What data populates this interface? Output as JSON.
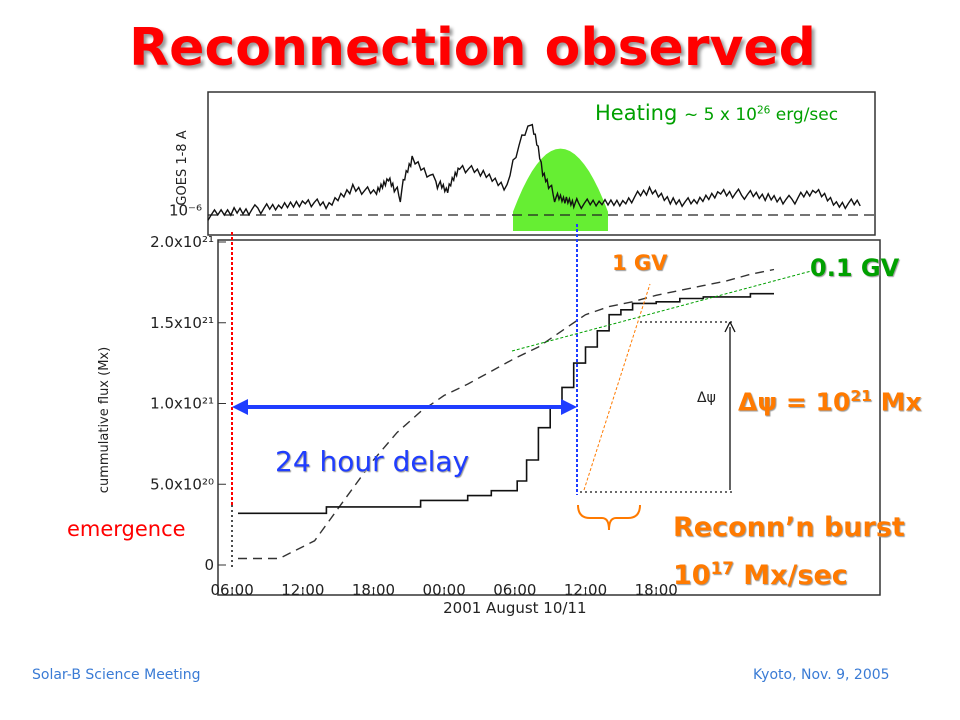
{
  "title": "Reconnection observed",
  "footer": {
    "left": "Solar-B Science Meeting",
    "right": "Kyoto, Nov. 9, 2005"
  },
  "annotations": {
    "heating_word": "Heating",
    "heating_tilde": "~ 5 x 10",
    "heating_exp": "26",
    "heating_unit": "erg/sec",
    "gv1": "1 GV",
    "gv01": "0.1 GV",
    "dpsi_sym": "Δψ",
    "dpsi_eq": " = 10",
    "dpsi_exp": "21",
    "dpsi_unit": " Mx",
    "delay": "24 hour delay",
    "emergence": "emergence",
    "burst_line1": "Reconn’n burst",
    "burst_base": "10",
    "burst_exp": "17",
    "burst_unit": " Mx/sec",
    "inner_dpsi": "Δψ"
  },
  "colors": {
    "title": "#ff0000",
    "heating": "#00a000",
    "heating_fill": "#66ee33",
    "orange": "#ff7a00",
    "blue": "#1f3dff",
    "footer": "#3a7bd5"
  },
  "chart_data": [
    {
      "panel": "GOES X-ray",
      "type": "line",
      "ylabel": "GOES 1-8 A",
      "y_tick_labels": [
        "10⁻⁶"
      ],
      "y_scale": "log",
      "x_range_hours": [
        4.8,
        61
      ],
      "background_level": 0.9,
      "series": [
        {
          "x": [
            4.8,
            7,
            9,
            11,
            13,
            15,
            17,
            19,
            20,
            21,
            22,
            24,
            25,
            26,
            28,
            30,
            32,
            33,
            34,
            35,
            36,
            38,
            40,
            42,
            44,
            46,
            48,
            50,
            52,
            54,
            56,
            58,
            60
          ],
          "values": [
            0.9,
            1.0,
            1.05,
            1.1,
            1.3,
            1.1,
            1.8,
            1.5,
            2.2,
            1.4,
            3.5,
            2.0,
            1.6,
            3.0,
            2.4,
            1.8,
            8.0,
            2.5,
            1.4,
            1.3,
            1.2,
            1.2,
            1.3,
            1.6,
            1.3,
            1.2,
            1.6,
            1.5,
            1.4,
            1.3,
            1.6,
            1.2,
            1.2
          ]
        }
      ],
      "heating_interval_hours": [
        30.5,
        38.5
      ],
      "heating_peak": 4.5
    },
    {
      "panel": "cumulative flux",
      "type": "line",
      "ylabel": "cummulative flux (Mx)",
      "xlabel": "2001 August 10/11",
      "x_tick_labels": [
        "06:00",
        "12:00",
        "18:00",
        "00:00",
        "06:00",
        "12:00",
        "18:00"
      ],
      "y_tick_labels": [
        "0",
        "5.0x10²⁰",
        "1.0x10²¹",
        "1.5x10²¹",
        "2.0x10²¹"
      ],
      "ylim": [
        0,
        2e+21
      ],
      "series": [
        {
          "style": "dashed",
          "x": [
            6.5,
            10,
            13,
            16,
            18,
            20,
            22,
            24,
            26,
            28,
            30,
            32,
            34,
            36,
            38,
            40,
            42,
            44,
            46,
            48,
            50,
            52
          ],
          "values": [
            4e+19,
            4e+19,
            1.5e+20,
            4.5e+20,
            6.5e+20,
            8.2e+20,
            9.5e+20,
            1.05e+21,
            1.12e+21,
            1.2e+21,
            1.28e+21,
            1.35e+21,
            1.45e+21,
            1.55e+21,
            1.6e+21,
            1.63e+21,
            1.67e+21,
            1.7e+21,
            1.73e+21,
            1.76e+21,
            1.8e+21,
            1.83e+21
          ]
        },
        {
          "style": "solid",
          "x": [
            6.5,
            12,
            14,
            18,
            22,
            26,
            28,
            30,
            30.2,
            31,
            32,
            33,
            34,
            35,
            36,
            37,
            38,
            39,
            40,
            42,
            44,
            46,
            48,
            50,
            52
          ],
          "values": [
            3.2e+20,
            3.2e+20,
            3.6e+20,
            3.6e+20,
            4e+20,
            4.3e+20,
            4.6e+20,
            4.6e+20,
            5.2e+20,
            6.5e+20,
            8.5e+20,
            9.8e+20,
            1.1e+21,
            1.25e+21,
            1.35e+21,
            1.45e+21,
            1.55e+21,
            1.58e+21,
            1.62e+21,
            1.63e+21,
            1.65e+21,
            1.66e+21,
            1.66e+21,
            1.68e+21,
            1.68e+21
          ]
        }
      ],
      "delta_psi_Mx": 1e+21,
      "burst_rate_Mx_per_sec": 1e+17,
      "delay_hours": 24
    }
  ]
}
